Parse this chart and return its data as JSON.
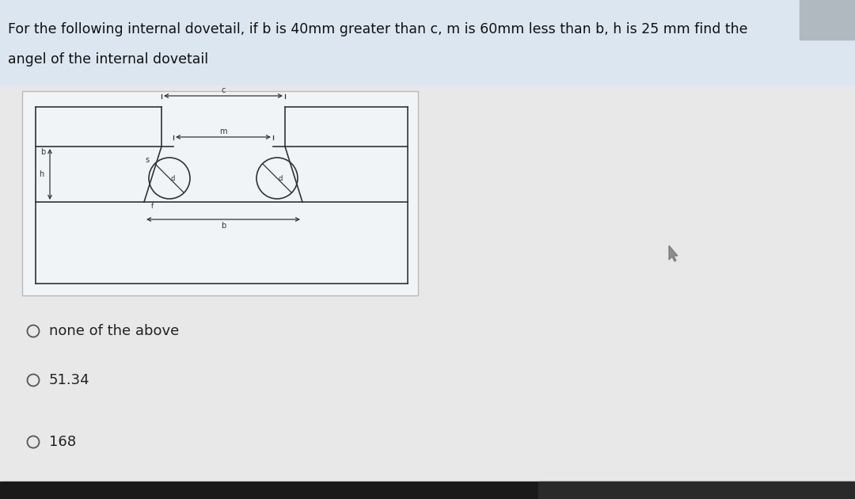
{
  "line1": "For the following internal dovetail, if b is 40mm greater than c, m is 60mm less than b, h is 25 mm find the",
  "line2": "angel of the internal dovetail",
  "bg_color": "#dce6f0",
  "bg_bottom_color": "#e8e8e8",
  "options": [
    "none of the above",
    "51.34",
    "168"
  ],
  "title_fontsize": 12.5,
  "option_fontsize": 13,
  "lc": "#333333",
  "diag_bg": "#eef2f5",
  "diag_border": "#aaaaaa",
  "cursor_color": "#777777"
}
